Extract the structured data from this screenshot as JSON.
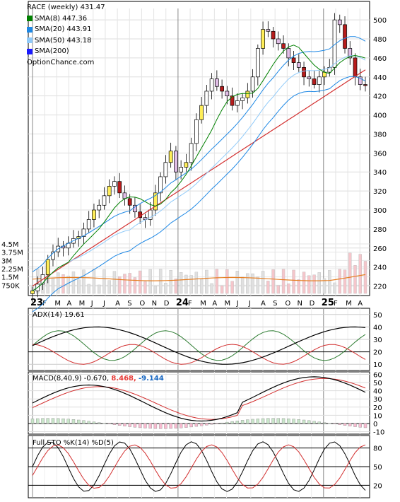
{
  "price_panel": {
    "title": "RACE (weekly) 431.47",
    "legend": [
      {
        "label": "SMA(8) 447.36",
        "color": "#008000"
      },
      {
        "label": "SMA(20) 443.91",
        "color": "#1e88e5"
      },
      {
        "label": "SMA(50) 443.18",
        "color": "#90caf9"
      },
      {
        "label": "SMA(200)",
        "color": "#1a1aff"
      }
    ],
    "watermark": "OptionChance.com"
  },
  "adx_panel": {
    "label": "ADX(14) 19.61"
  },
  "macd_panel": {
    "label": "MACD(8,40,9) -0.670,",
    "macd_value": "8.468,",
    "signal_value": "-9.144",
    "macd_color": "#e53935",
    "signal_color": "#1565c0"
  },
  "sto_panel": {
    "label": "Full STO %K(14) %D(5)"
  },
  "chart_data": [
    {
      "type": "candlestick",
      "title": "RACE (weekly) 431.47",
      "x_tick_labels": [
        "23",
        "F",
        "M",
        "A",
        "M",
        "J",
        "J",
        "A",
        "S",
        "O",
        "N",
        "D",
        "24",
        "F",
        "M",
        "A",
        "M",
        "J",
        "J",
        "A",
        "S",
        "O",
        "N",
        "D",
        "25",
        "F",
        "M",
        "A"
      ],
      "y_ticks": [
        220,
        240,
        260,
        280,
        300,
        320,
        340,
        360,
        380,
        400,
        420,
        440,
        460,
        480,
        500
      ],
      "ylim": [
        210,
        512
      ],
      "volume_ticks": [
        "4.5M",
        "3.75M",
        "3M",
        "2.25M",
        "1.5M",
        "750K"
      ],
      "volume_tick_values": [
        4.5,
        3.75,
        3.0,
        2.25,
        1.5,
        0.75
      ],
      "approx_closes": [
        215,
        222,
        232,
        248,
        256,
        262,
        260,
        265,
        270,
        272,
        280,
        290,
        300,
        305,
        315,
        325,
        330,
        318,
        312,
        305,
        298,
        292,
        290,
        300,
        318,
        335,
        350,
        362,
        340,
        345,
        350,
        370,
        395,
        410,
        425,
        438,
        430,
        425,
        420,
        410,
        415,
        418,
        425,
        440,
        470,
        490,
        488,
        480,
        475,
        470,
        460,
        455,
        450,
        440,
        438,
        432,
        440,
        445,
        450,
        500,
        495,
        470,
        460,
        440,
        432,
        431.47
      ],
      "sma8_last": 447.36,
      "sma20_last": 443.91,
      "sma50_last": 443.18
    },
    {
      "type": "line",
      "name": "ADX(14)",
      "y_ticks": [
        10,
        20,
        30,
        40,
        50
      ],
      "ylim": [
        5,
        55
      ],
      "adx_last": 19.61
    },
    {
      "type": "line",
      "name": "MACD(8,40,9)",
      "y_ticks": [
        -10,
        0,
        10,
        20,
        30,
        40,
        50,
        60
      ],
      "ylim": [
        -13,
        63
      ],
      "values": [
        -0.67,
        8.468,
        -9.144
      ]
    },
    {
      "type": "line",
      "name": "Full STO %K(14) %D(5)",
      "y_ticks": [
        20,
        50,
        80
      ],
      "ylim": [
        0,
        100
      ]
    }
  ]
}
